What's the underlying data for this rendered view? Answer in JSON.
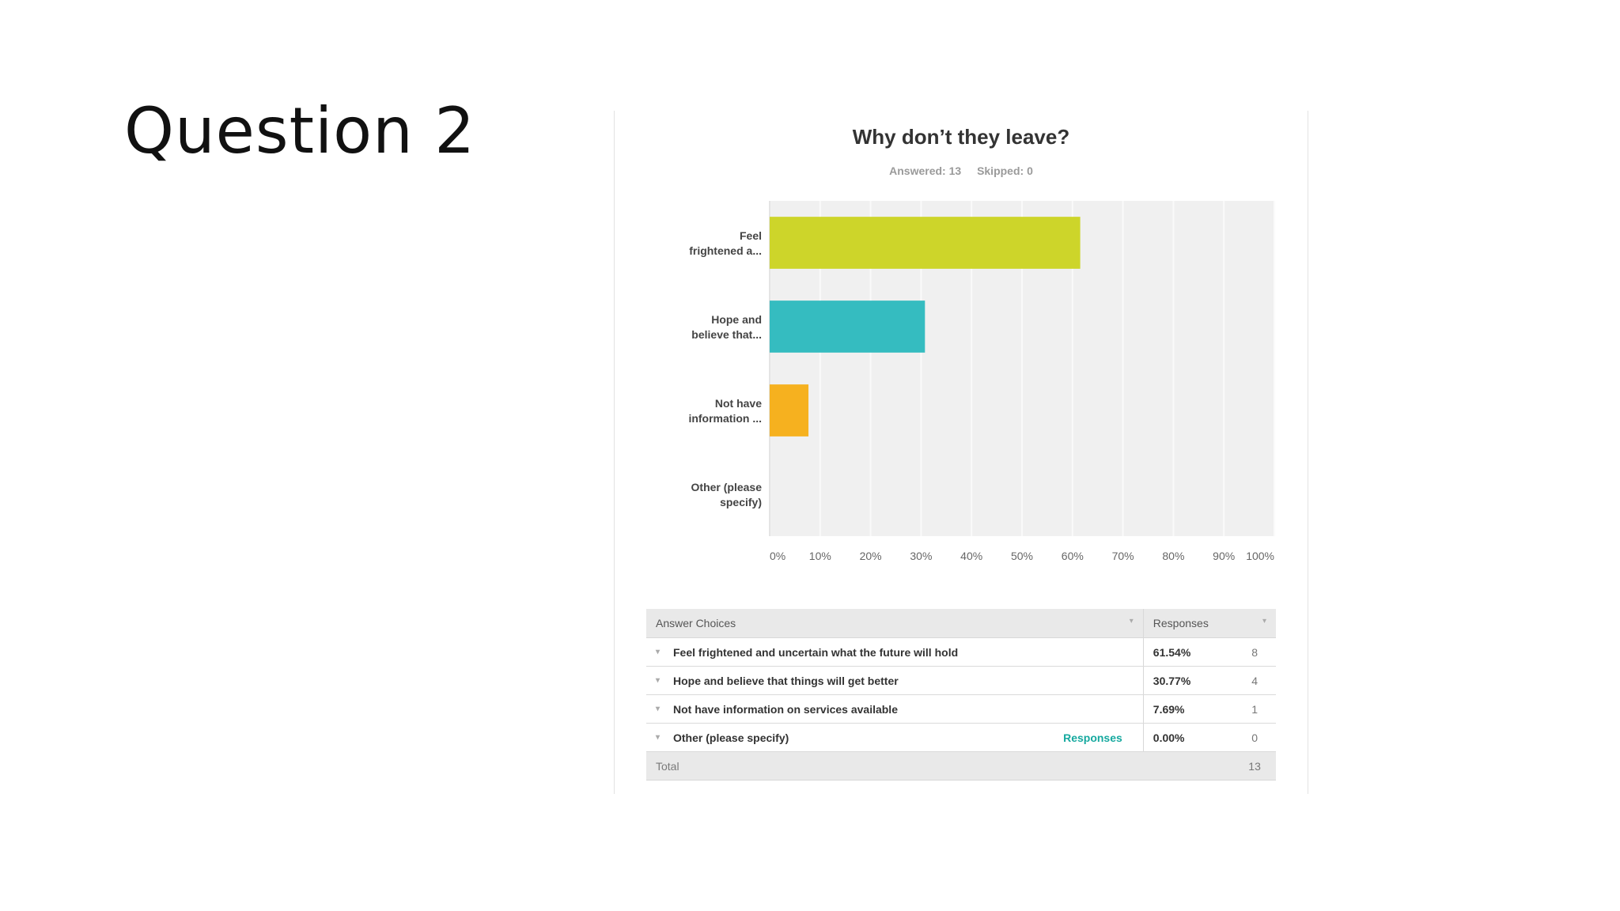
{
  "slide": {
    "title": "Question 2"
  },
  "chart_data": {
    "type": "bar",
    "orientation": "horizontal",
    "title": "Why don’t they leave?",
    "answered_label": "Answered: 13",
    "skipped_label": "Skipped: 0",
    "categories": [
      [
        "Feel",
        "frightened a..."
      ],
      [
        "Hope and",
        "believe that..."
      ],
      [
        "Not have",
        "information ..."
      ],
      [
        "Other (please",
        "specify)"
      ]
    ],
    "values": [
      61.54,
      30.77,
      7.69,
      0.0
    ],
    "colors": [
      "#cdd52a",
      "#35bcc0",
      "#f6b11f",
      "#999999"
    ],
    "xlim": [
      0,
      100
    ],
    "xticks": [
      "0%",
      "10%",
      "20%",
      "30%",
      "40%",
      "50%",
      "60%",
      "70%",
      "80%",
      "90%",
      "100%"
    ],
    "grid": true,
    "background": "#f0f0f0"
  },
  "table": {
    "header_choices": "Answer Choices",
    "header_responses": "Responses",
    "rows": [
      {
        "choice": "Feel frightened and uncertain what the future will hold",
        "percent": "61.54%",
        "count": "8"
      },
      {
        "choice": "Hope and believe that things will get better",
        "percent": "30.77%",
        "count": "4"
      },
      {
        "choice": "Not have information on services available",
        "percent": "7.69%",
        "count": "1"
      },
      {
        "choice": "Other (please specify)",
        "link": "Responses",
        "percent": "0.00%",
        "count": "0"
      }
    ],
    "total_label": "Total",
    "total_value": "13",
    "link_color": "#16a99f"
  }
}
